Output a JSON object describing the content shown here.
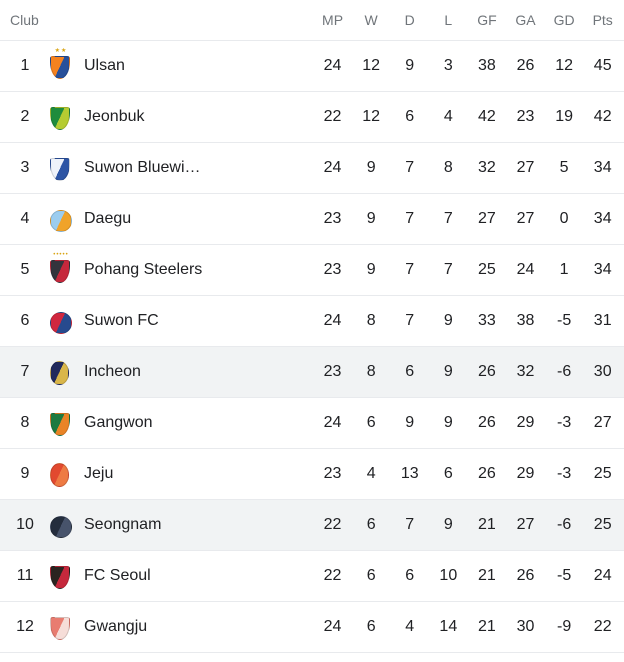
{
  "table": {
    "headers": {
      "club": "Club",
      "stats": [
        "MP",
        "W",
        "D",
        "L",
        "GF",
        "GA",
        "GD",
        "Pts"
      ]
    },
    "colors": {
      "header_text": "#70757a",
      "body_text": "#202124",
      "divider": "#e8eaed",
      "row_highlight": "#f1f3f4",
      "marks_gold": "#d9a514"
    },
    "rows": [
      {
        "rank": "1",
        "club": "Ulsan",
        "mp": "24",
        "w": "12",
        "d": "9",
        "l": "3",
        "gf": "38",
        "ga": "26",
        "gd": "12",
        "pts": "45",
        "highlighted": false,
        "logo": {
          "shape": "shield",
          "c1": "#f5821f",
          "c2": "#27509b",
          "marks": "★★",
          "marks_color": "#d9a514"
        }
      },
      {
        "rank": "2",
        "club": "Jeonbuk",
        "mp": "22",
        "w": "12",
        "d": "6",
        "l": "4",
        "gf": "42",
        "ga": "23",
        "gd": "19",
        "pts": "42",
        "highlighted": false,
        "logo": {
          "shape": "shield",
          "c1": "#1e8c3c",
          "c2": "#b5cc32",
          "marks": "",
          "marks_color": ""
        }
      },
      {
        "rank": "3",
        "club": "Suwon Bluewi…",
        "mp": "24",
        "w": "9",
        "d": "7",
        "l": "8",
        "gf": "32",
        "ga": "27",
        "gd": "5",
        "pts": "34",
        "highlighted": false,
        "logo": {
          "shape": "shield",
          "c1": "#eef2fa",
          "c2": "#2d55a5",
          "marks": "",
          "marks_color": ""
        }
      },
      {
        "rank": "4",
        "club": "Daegu",
        "mp": "23",
        "w": "9",
        "d": "7",
        "l": "7",
        "gf": "27",
        "ga": "27",
        "gd": "0",
        "pts": "34",
        "highlighted": false,
        "logo": {
          "shape": "circle",
          "c1": "#9ccdef",
          "c2": "#f0a32a",
          "marks": "",
          "marks_color": ""
        }
      },
      {
        "rank": "5",
        "club": "Pohang Steelers",
        "mp": "23",
        "w": "9",
        "d": "7",
        "l": "7",
        "gf": "25",
        "ga": "24",
        "gd": "1",
        "pts": "34",
        "highlighted": false,
        "logo": {
          "shape": "shield",
          "c1": "#33343c",
          "c2": "#c6283c",
          "marks": "•••••",
          "marks_color": "#d9a514"
        }
      },
      {
        "rank": "6",
        "club": "Suwon FC",
        "mp": "24",
        "w": "8",
        "d": "7",
        "l": "9",
        "gf": "33",
        "ga": "38",
        "gd": "-5",
        "pts": "31",
        "highlighted": false,
        "logo": {
          "shape": "circle",
          "c1": "#d0273f",
          "c2": "#274a8e",
          "marks": "",
          "marks_color": ""
        }
      },
      {
        "rank": "7",
        "club": "Incheon",
        "mp": "23",
        "w": "8",
        "d": "6",
        "l": "9",
        "gf": "26",
        "ga": "32",
        "gd": "-6",
        "pts": "30",
        "highlighted": true,
        "logo": {
          "shape": "oval",
          "c1": "#222a5c",
          "c2": "#d9b64a",
          "marks": "",
          "marks_color": ""
        }
      },
      {
        "rank": "8",
        "club": "Gangwon",
        "mp": "24",
        "w": "6",
        "d": "9",
        "l": "9",
        "gf": "26",
        "ga": "29",
        "gd": "-3",
        "pts": "27",
        "highlighted": false,
        "logo": {
          "shape": "shield",
          "c1": "#1d7a40",
          "c2": "#e98426",
          "marks": "",
          "marks_color": ""
        }
      },
      {
        "rank": "9",
        "club": "Jeju",
        "mp": "23",
        "w": "4",
        "d": "13",
        "l": "6",
        "gf": "26",
        "ga": "29",
        "gd": "-3",
        "pts": "25",
        "highlighted": false,
        "logo": {
          "shape": "oval",
          "c1": "#e2492f",
          "c2": "#ee7a43",
          "marks": "",
          "marks_color": ""
        }
      },
      {
        "rank": "10",
        "club": "Seongnam",
        "mp": "22",
        "w": "6",
        "d": "7",
        "l": "9",
        "gf": "21",
        "ga": "27",
        "gd": "-6",
        "pts": "25",
        "highlighted": true,
        "logo": {
          "shape": "circle",
          "c1": "#242d3d",
          "c2": "#47536b",
          "marks": "",
          "marks_color": ""
        }
      },
      {
        "rank": "11",
        "club": "FC Seoul",
        "mp": "22",
        "w": "6",
        "d": "6",
        "l": "10",
        "gf": "21",
        "ga": "26",
        "gd": "-5",
        "pts": "24",
        "highlighted": false,
        "logo": {
          "shape": "shield",
          "c1": "#2a2420",
          "c2": "#c6283c",
          "marks": "",
          "marks_color": ""
        }
      },
      {
        "rank": "12",
        "club": "Gwangju",
        "mp": "24",
        "w": "6",
        "d": "4",
        "l": "14",
        "gf": "21",
        "ga": "30",
        "gd": "-9",
        "pts": "22",
        "highlighted": false,
        "logo": {
          "shape": "shield",
          "c1": "#e87c70",
          "c2": "#f6ddd8",
          "marks": "",
          "marks_color": ""
        }
      }
    ]
  }
}
